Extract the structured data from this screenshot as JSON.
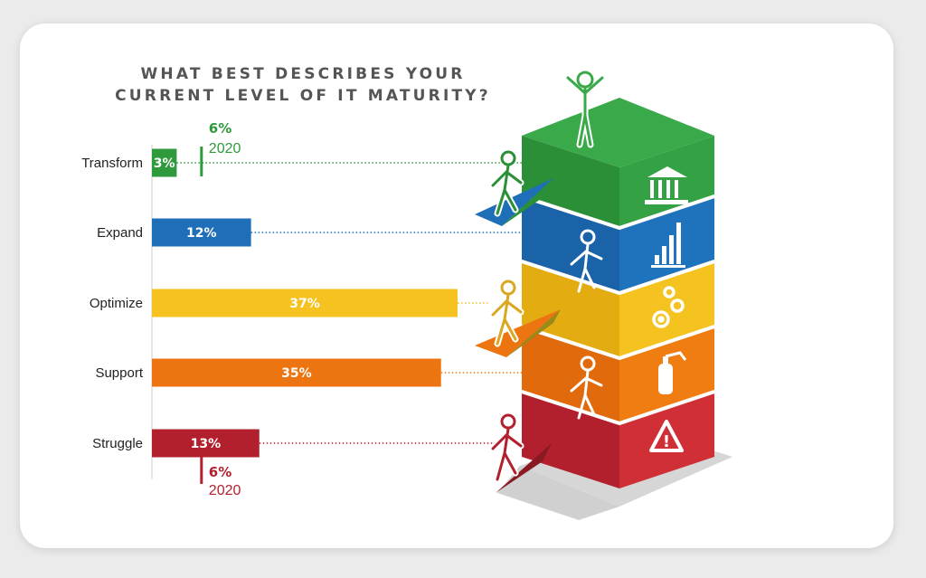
{
  "chart_data": {
    "type": "bar",
    "orientation": "horizontal",
    "title": "WHAT BEST DESCRIBES YOUR CURRENT LEVEL OF IT MATURITY?",
    "title_lines": [
      "WHAT BEST DESCRIBES YOUR",
      "CURRENT LEVEL OF IT MATURITY?"
    ],
    "categories": [
      "Transform",
      "Expand",
      "Optimize",
      "Support",
      "Struggle"
    ],
    "values": [
      3,
      12,
      37,
      35,
      13
    ],
    "value_labels": [
      "3%",
      "12%",
      "37%",
      "35%",
      "13%"
    ],
    "colors": [
      "#2e9a3c",
      "#1f6fb8",
      "#f6c21f",
      "#ec7511",
      "#b3202d"
    ],
    "xlim": [
      0,
      37
    ],
    "grid": false,
    "comparison_2020": [
      {
        "category": "Transform",
        "value": 6,
        "label": "6%",
        "year": "2020",
        "color": "#2e9a3c"
      },
      {
        "category": "Struggle",
        "value": 6,
        "label": "6%",
        "year": "2020",
        "color": "#b3202d"
      }
    ]
  },
  "illustration": {
    "levels": [
      "Transform",
      "Expand",
      "Optimize",
      "Support",
      "Struggle"
    ],
    "level_icons": [
      "bank-icon",
      "growth-chart-icon",
      "gears-icon",
      "fire-extinguisher-icon",
      "warning-icon"
    ],
    "warning_symbol": "!"
  }
}
